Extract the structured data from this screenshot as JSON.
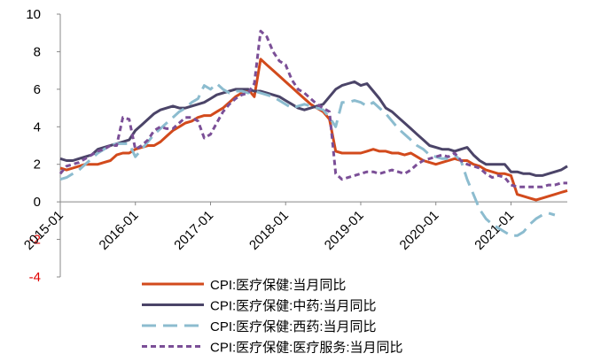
{
  "chart_data": {
    "type": "line",
    "categories": [
      "2015-01",
      null,
      null,
      null,
      null,
      null,
      null,
      null,
      null,
      null,
      null,
      null,
      "2016-01",
      null,
      null,
      null,
      null,
      null,
      null,
      null,
      null,
      null,
      null,
      null,
      "2017-01",
      null,
      null,
      null,
      null,
      null,
      null,
      null,
      null,
      null,
      null,
      null,
      "2018-01",
      null,
      null,
      null,
      null,
      null,
      null,
      null,
      null,
      null,
      null,
      null,
      "2019-01",
      null,
      null,
      null,
      null,
      null,
      null,
      null,
      null,
      null,
      null,
      null,
      "2020-01",
      null,
      null,
      null,
      null,
      null,
      null,
      null,
      null,
      null,
      null,
      null,
      "2021-01",
      null,
      null,
      null,
      null,
      null,
      null,
      null,
      null,
      null
    ],
    "series": [
      {
        "name": "CPI:医疗保健:当月同比",
        "color": "#d24a1c",
        "style": "solid",
        "values": [
          1.8,
          1.7,
          1.8,
          1.9,
          2.0,
          2.0,
          2.0,
          2.1,
          2.2,
          2.5,
          2.6,
          2.6,
          2.8,
          2.9,
          3.0,
          3.0,
          3.2,
          3.5,
          3.8,
          4.0,
          4.2,
          4.3,
          4.5,
          4.6,
          4.6,
          4.8,
          5.0,
          5.3,
          5.6,
          5.8,
          6.0,
          5.6,
          7.6,
          7.3,
          7.0,
          6.7,
          6.4,
          6.1,
          5.8,
          5.5,
          5.2,
          5.0,
          4.8,
          4.4,
          2.7,
          2.6,
          2.6,
          2.6,
          2.6,
          2.7,
          2.8,
          2.7,
          2.7,
          2.6,
          2.6,
          2.5,
          2.6,
          2.4,
          2.2,
          2.1,
          2.0,
          2.1,
          2.2,
          2.3,
          2.2,
          2.2,
          2.0,
          1.9,
          1.7,
          1.6,
          1.5,
          1.5,
          1.4,
          0.4,
          0.3,
          0.2,
          0.1,
          0.2,
          0.3,
          0.4,
          0.5,
          0.6
        ]
      },
      {
        "name": "CPI:医疗保健:中药:当月同比",
        "color": "#4b4468",
        "style": "solid",
        "values": [
          2.3,
          2.2,
          2.2,
          2.3,
          2.4,
          2.5,
          2.8,
          2.9,
          3.0,
          3.1,
          3.2,
          3.3,
          3.8,
          4.1,
          4.4,
          4.7,
          4.9,
          5.0,
          5.1,
          5.0,
          5.0,
          5.1,
          5.2,
          5.3,
          5.5,
          5.7,
          5.8,
          5.9,
          6.0,
          6.0,
          6.0,
          5.9,
          5.9,
          5.8,
          5.7,
          5.6,
          5.4,
          5.2,
          5.0,
          4.9,
          5.0,
          5.1,
          5.2,
          5.6,
          6.0,
          6.2,
          6.3,
          6.4,
          6.2,
          6.3,
          5.9,
          5.5,
          5.0,
          4.8,
          4.5,
          4.2,
          3.9,
          3.6,
          3.3,
          3.0,
          2.9,
          2.8,
          2.8,
          2.7,
          2.8,
          2.9,
          2.5,
          2.2,
          2.0,
          2.0,
          2.0,
          2.0,
          1.6,
          1.6,
          1.5,
          1.5,
          1.4,
          1.4,
          1.5,
          1.6,
          1.7,
          1.9
        ]
      },
      {
        "name": "CPI:医疗保健:西药:当月同比",
        "color": "#8cbccf",
        "style": "dashed",
        "values": [
          1.2,
          1.3,
          1.5,
          1.7,
          2.0,
          2.3,
          2.6,
          2.8,
          3.0,
          3.1,
          3.1,
          3.1,
          2.4,
          2.8,
          3.2,
          3.6,
          3.9,
          4.2,
          4.5,
          4.8,
          5.0,
          5.3,
          5.5,
          6.2,
          6.0,
          6.3,
          6.0,
          5.8,
          5.9,
          5.9,
          5.8,
          5.9,
          5.8,
          5.7,
          5.6,
          5.4,
          5.2,
          5.0,
          5.1,
          5.2,
          5.1,
          5.0,
          4.9,
          4.5,
          4.0,
          5.3,
          5.3,
          5.4,
          5.3,
          5.1,
          5.3,
          5.0,
          4.7,
          4.3,
          3.9,
          3.6,
          3.3,
          3.0,
          2.8,
          2.5,
          2.4,
          2.3,
          2.3,
          2.5,
          2.2,
          1.2,
          0.4,
          -0.4,
          -0.9,
          -1.2,
          -1.4,
          -1.6,
          -1.8,
          -1.8,
          -1.6,
          -1.2,
          -0.9,
          -0.7,
          -0.6,
          -0.7,
          null,
          null
        ]
      },
      {
        "name": "CPI:医疗保健:医疗服务:当月同比",
        "color": "#7b4f97",
        "style": "dotted",
        "values": [
          1.5,
          1.9,
          2.0,
          2.1,
          2.3,
          2.5,
          2.7,
          2.8,
          3.0,
          3.0,
          4.5,
          4.4,
          2.8,
          3.0,
          3.3,
          3.8,
          4.0,
          3.9,
          3.9,
          4.2,
          4.5,
          4.5,
          4.3,
          3.4,
          3.6,
          4.2,
          4.8,
          5.2,
          5.5,
          5.7,
          5.8,
          6.3,
          9.1,
          8.8,
          8.0,
          7.5,
          7.3,
          6.5,
          6.0,
          5.8,
          5.5,
          5.2,
          5.0,
          4.8,
          1.5,
          1.2,
          1.3,
          1.4,
          1.5,
          1.6,
          1.6,
          1.5,
          1.6,
          1.7,
          1.6,
          1.5,
          1.7,
          2.0,
          2.2,
          2.3,
          2.4,
          2.5,
          2.4,
          2.6,
          2.2,
          2.0,
          1.9,
          1.8,
          1.5,
          1.3,
          1.4,
          1.3,
          0.9,
          0.8,
          0.8,
          0.8,
          0.8,
          0.8,
          0.9,
          0.9,
          1.0,
          1.0
        ]
      }
    ],
    "ylim": [
      -4,
      10
    ],
    "yticks": [
      -4,
      -2,
      0,
      2,
      4,
      6,
      8,
      10
    ],
    "negative_tick_color": "#e00000",
    "grid": false,
    "legend": "bottom"
  }
}
